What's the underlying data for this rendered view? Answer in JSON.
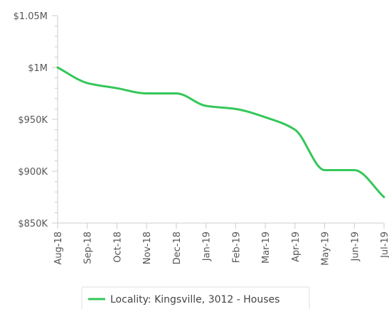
{
  "chart_data": {
    "type": "line",
    "x": [
      "Aug-18",
      "Sep-18",
      "Oct-18",
      "Nov-18",
      "Dec-18",
      "Jan-19",
      "Feb-19",
      "Mar-19",
      "Apr-19",
      "May-19",
      "Jun-19",
      "Jul-19"
    ],
    "series": [
      {
        "name": "Locality: Kingsville, 3012 - Houses",
        "color": "#34c759",
        "values": [
          1000000,
          985000,
          980000,
          975000,
          975000,
          963000,
          960000,
          952000,
          940000,
          901000,
          901000,
          875000
        ]
      }
    ],
    "yticks": [
      {
        "value": 850000,
        "label": "$850K"
      },
      {
        "value": 900000,
        "label": "$900K"
      },
      {
        "value": 950000,
        "label": "$950K"
      },
      {
        "value": 1000000,
        "label": "$1M"
      },
      {
        "value": 1050000,
        "label": "$1.05M"
      }
    ],
    "ylim": [
      850000,
      1050000
    ],
    "grid": false,
    "legend_position": "bottom"
  }
}
